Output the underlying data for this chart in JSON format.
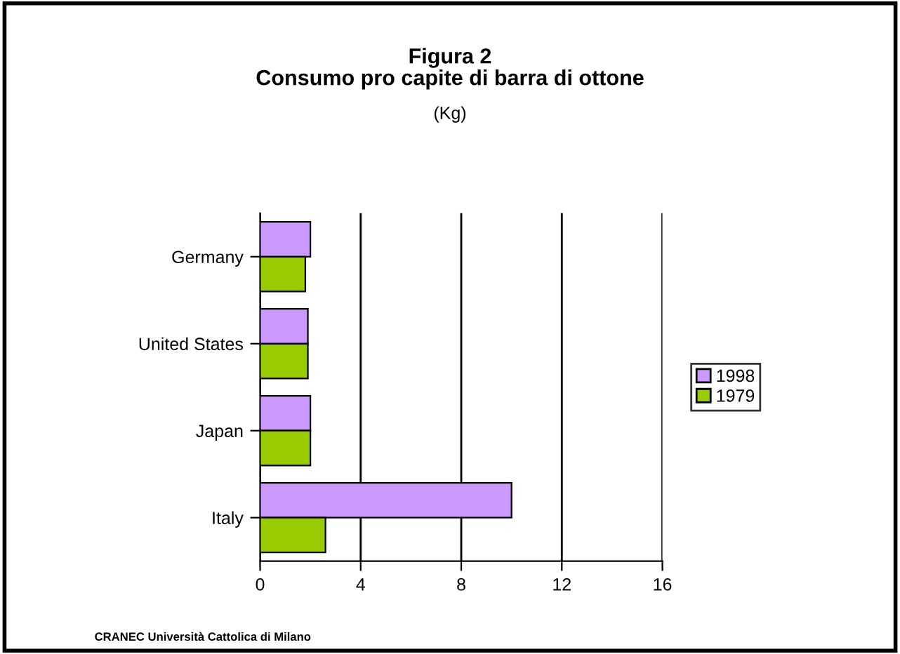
{
  "chart_data": {
    "type": "bar",
    "orientation": "horizontal",
    "title": "Figura 2\nConsumo pro capite di barra di ottone",
    "subtitle": "(Kg)",
    "categories": [
      "Germany",
      "United States",
      "Japan",
      "Italy"
    ],
    "series": [
      {
        "name": "1998",
        "color": "#cc99ff",
        "values": [
          2.0,
          1.9,
          2.0,
          10.0
        ]
      },
      {
        "name": "1979",
        "color": "#99cc00",
        "values": [
          1.8,
          1.9,
          2.0,
          2.6
        ]
      }
    ],
    "xlim": [
      0,
      16
    ],
    "xticks": [
      0,
      4,
      8,
      12,
      16
    ],
    "grid": "x",
    "legend": "right",
    "annotations": [
      "CRANEC Università Cattolica di Milano"
    ]
  }
}
